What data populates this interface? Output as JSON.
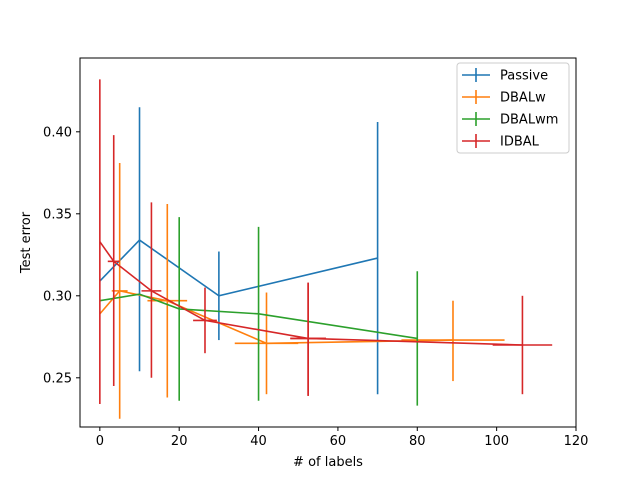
{
  "chart_data": {
    "type": "line",
    "title": "",
    "xlabel": "# of labels",
    "ylabel": "Test error",
    "xlim": [
      -5,
      120
    ],
    "ylim": [
      0.22,
      0.445
    ],
    "xticks": [
      0,
      20,
      40,
      60,
      80,
      100,
      120
    ],
    "yticks": [
      0.25,
      0.3,
      0.35,
      0.4
    ],
    "xtick_labels": [
      "0",
      "20",
      "40",
      "60",
      "80",
      "100",
      "120"
    ],
    "ytick_labels": [
      "0.25",
      "0.30",
      "0.35",
      "0.40"
    ],
    "legend_position": "top-right",
    "grid": false,
    "series": [
      {
        "name": "Passive",
        "color": "#1f77b4",
        "points": [
          {
            "x": 0,
            "y": 0.309,
            "yerr_low": 0.309,
            "yerr_high": 0.309,
            "xerr_low": 0,
            "xerr_high": 0
          },
          {
            "x": 10,
            "y": 0.334,
            "yerr_low": 0.254,
            "yerr_high": 0.415,
            "xerr_low": 10,
            "xerr_high": 10
          },
          {
            "x": 30,
            "y": 0.3,
            "yerr_low": 0.273,
            "yerr_high": 0.327,
            "xerr_low": 30,
            "xerr_high": 30
          },
          {
            "x": 70,
            "y": 0.323,
            "yerr_low": 0.24,
            "yerr_high": 0.406,
            "xerr_low": 70,
            "xerr_high": 70
          }
        ]
      },
      {
        "name": "DBALw",
        "color": "#ff7f0e",
        "points": [
          {
            "x": 0,
            "y": 0.289,
            "yerr_low": 0.289,
            "yerr_high": 0.289,
            "xerr_low": 0,
            "xerr_high": 0
          },
          {
            "x": 5,
            "y": 0.303,
            "yerr_low": 0.225,
            "yerr_high": 0.381,
            "xerr_low": 3,
            "xerr_high": 7
          },
          {
            "x": 17,
            "y": 0.297,
            "yerr_low": 0.238,
            "yerr_high": 0.356,
            "xerr_low": 12,
            "xerr_high": 22
          },
          {
            "x": 42,
            "y": 0.271,
            "yerr_low": 0.24,
            "yerr_high": 0.302,
            "xerr_low": 34,
            "xerr_high": 50
          },
          {
            "x": 89,
            "y": 0.273,
            "yerr_low": 0.248,
            "yerr_high": 0.297,
            "xerr_low": 76,
            "xerr_high": 102
          }
        ]
      },
      {
        "name": "DBALwm",
        "color": "#2ca02c",
        "points": [
          {
            "x": 0,
            "y": 0.297,
            "yerr_low": 0.297,
            "yerr_high": 0.297,
            "xerr_low": 0,
            "xerr_high": 0
          },
          {
            "x": 10,
            "y": 0.301,
            "yerr_low": 0.301,
            "yerr_high": 0.301,
            "xerr_low": 10,
            "xerr_high": 10
          },
          {
            "x": 20,
            "y": 0.292,
            "yerr_low": 0.236,
            "yerr_high": 0.348,
            "xerr_low": 20,
            "xerr_high": 20
          },
          {
            "x": 40,
            "y": 0.289,
            "yerr_low": 0.236,
            "yerr_high": 0.342,
            "xerr_low": 40,
            "xerr_high": 40
          },
          {
            "x": 80,
            "y": 0.274,
            "yerr_low": 0.233,
            "yerr_high": 0.315,
            "xerr_low": 80,
            "xerr_high": 80
          }
        ]
      },
      {
        "name": "IDBAL",
        "color": "#d62728",
        "points": [
          {
            "x": 0,
            "y": 0.333,
            "yerr_low": 0.234,
            "yerr_high": 0.432,
            "xerr_low": 0,
            "xerr_high": 0
          },
          {
            "x": 3.5,
            "y": 0.321,
            "yerr_low": 0.245,
            "yerr_high": 0.398,
            "xerr_low": 2,
            "xerr_high": 5
          },
          {
            "x": 13,
            "y": 0.303,
            "yerr_low": 0.25,
            "yerr_high": 0.357,
            "xerr_low": 10.5,
            "xerr_high": 15.5
          },
          {
            "x": 26.5,
            "y": 0.285,
            "yerr_low": 0.265,
            "yerr_high": 0.305,
            "xerr_low": 23.5,
            "xerr_high": 29.5
          },
          {
            "x": 52.5,
            "y": 0.274,
            "yerr_low": 0.239,
            "yerr_high": 0.308,
            "xerr_low": 48,
            "xerr_high": 57
          }
        ]
      }
    ],
    "idbal_tail": [
      {
        "x": 106.5,
        "y": 0.27,
        "yerr_low": 0.24,
        "yerr_high": 0.3,
        "xerr_low": 99,
        "xerr_high": 114
      }
    ]
  }
}
